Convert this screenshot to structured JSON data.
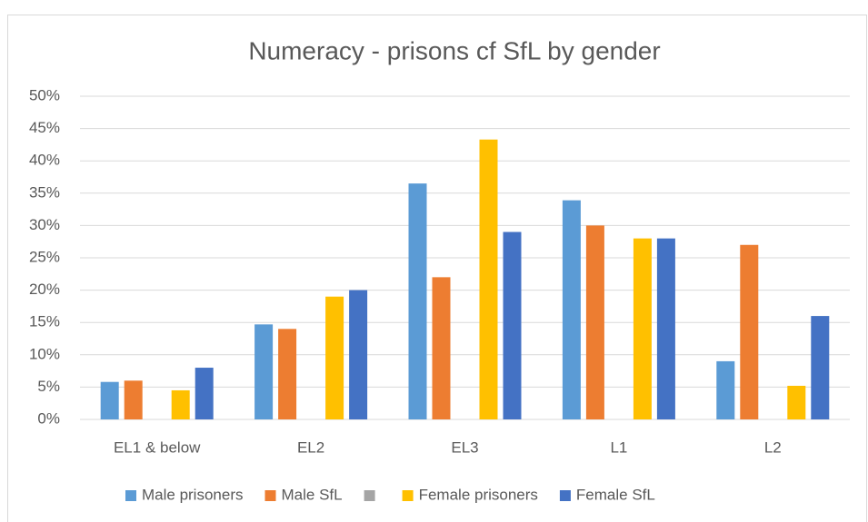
{
  "chart_data": {
    "type": "bar",
    "title": "Numeracy - prisons cf SfL by gender",
    "categories": [
      "EL1 & below",
      "EL2",
      "EL3",
      "L1",
      "L2"
    ],
    "series": [
      {
        "name": "Male prisoners",
        "color": "#5b9bd5",
        "values": [
          5.8,
          14.7,
          36.5,
          33.9,
          9
        ]
      },
      {
        "name": "Male SfL",
        "color": "#ed7d31",
        "values": [
          6,
          14,
          22,
          30,
          27
        ]
      },
      {
        "name": null,
        "color": "#a5a5a5",
        "values": [
          null,
          null,
          null,
          null,
          null
        ]
      },
      {
        "name": "Female prisoners",
        "color": "#ffc000",
        "values": [
          4.5,
          19,
          43.3,
          28,
          5.2
        ]
      },
      {
        "name": "Female SfL",
        "color": "#4472c4",
        "values": [
          8,
          20,
          29,
          28,
          16
        ]
      }
    ],
    "ylim": [
      0,
      50
    ],
    "yticks": [
      {
        "value": 0,
        "label": "0%"
      },
      {
        "value": 5,
        "label": "5%"
      },
      {
        "value": 10,
        "label": "10%"
      },
      {
        "value": 15,
        "label": "15%"
      },
      {
        "value": 20,
        "label": "20%"
      },
      {
        "value": 25,
        "label": "25%"
      },
      {
        "value": 30,
        "label": "30%"
      },
      {
        "value": 35,
        "label": "35%"
      },
      {
        "value": 40,
        "label": "40%"
      },
      {
        "value": 45,
        "label": "45%"
      },
      {
        "value": 50,
        "label": "50%"
      }
    ],
    "grid": true,
    "legend": "bottom"
  }
}
